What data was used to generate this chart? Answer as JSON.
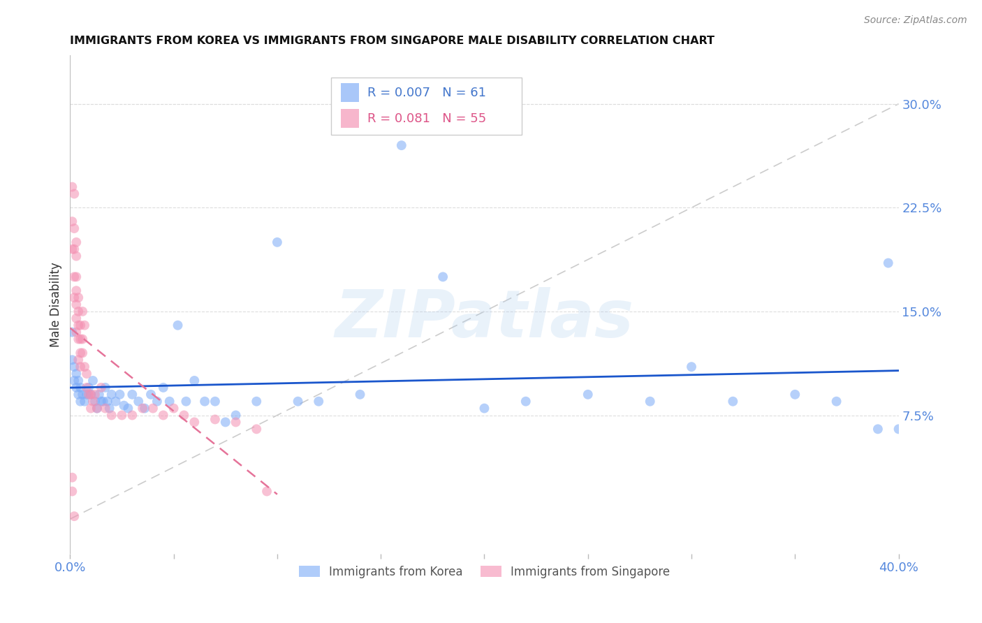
{
  "title": "IMMIGRANTS FROM KOREA VS IMMIGRANTS FROM SINGAPORE MALE DISABILITY CORRELATION CHART",
  "source": "Source: ZipAtlas.com",
  "ylabel": "Male Disability",
  "ytick_labels": [
    "7.5%",
    "15.0%",
    "22.5%",
    "30.0%"
  ],
  "ytick_values": [
    0.075,
    0.15,
    0.225,
    0.3
  ],
  "xlim": [
    0.0,
    0.4
  ],
  "ylim": [
    -0.025,
    0.335
  ],
  "legend_korea_R": "0.007",
  "legend_korea_N": "61",
  "legend_singapore_R": "0.081",
  "legend_singapore_N": "55",
  "korea_color": "#7BAAF7",
  "singapore_color": "#F48FB1",
  "korea_line_color": "#1A56CC",
  "singapore_line_color": "#E57399",
  "diagonal_color": "#CCCCCC",
  "watermark": "ZIPatlas",
  "korea_x": [
    0.001,
    0.001,
    0.002,
    0.002,
    0.003,
    0.003,
    0.004,
    0.004,
    0.005,
    0.005,
    0.006,
    0.007,
    0.008,
    0.009,
    0.01,
    0.011,
    0.012,
    0.013,
    0.014,
    0.015,
    0.016,
    0.017,
    0.018,
    0.019,
    0.02,
    0.022,
    0.024,
    0.026,
    0.028,
    0.03,
    0.033,
    0.036,
    0.039,
    0.042,
    0.045,
    0.048,
    0.052,
    0.056,
    0.06,
    0.065,
    0.07,
    0.075,
    0.08,
    0.09,
    0.1,
    0.11,
    0.12,
    0.14,
    0.16,
    0.18,
    0.2,
    0.22,
    0.25,
    0.28,
    0.3,
    0.32,
    0.35,
    0.37,
    0.39,
    0.395,
    0.4
  ],
  "korea_y": [
    0.135,
    0.115,
    0.11,
    0.1,
    0.105,
    0.095,
    0.1,
    0.09,
    0.095,
    0.085,
    0.09,
    0.085,
    0.09,
    0.095,
    0.09,
    0.1,
    0.085,
    0.08,
    0.09,
    0.085,
    0.085,
    0.095,
    0.085,
    0.08,
    0.09,
    0.085,
    0.09,
    0.082,
    0.08,
    0.09,
    0.085,
    0.08,
    0.09,
    0.085,
    0.095,
    0.085,
    0.14,
    0.085,
    0.1,
    0.085,
    0.085,
    0.07,
    0.075,
    0.085,
    0.2,
    0.085,
    0.085,
    0.09,
    0.27,
    0.175,
    0.08,
    0.085,
    0.09,
    0.085,
    0.11,
    0.085,
    0.09,
    0.085,
    0.065,
    0.185,
    0.065
  ],
  "singapore_x": [
    0.001,
    0.001,
    0.001,
    0.001,
    0.002,
    0.002,
    0.002,
    0.002,
    0.002,
    0.003,
    0.003,
    0.003,
    0.003,
    0.003,
    0.003,
    0.003,
    0.004,
    0.004,
    0.004,
    0.004,
    0.004,
    0.005,
    0.005,
    0.005,
    0.005,
    0.006,
    0.006,
    0.006,
    0.007,
    0.007,
    0.008,
    0.008,
    0.009,
    0.01,
    0.011,
    0.012,
    0.013,
    0.015,
    0.017,
    0.02,
    0.025,
    0.03,
    0.035,
    0.04,
    0.045,
    0.05,
    0.055,
    0.06,
    0.07,
    0.08,
    0.09,
    0.095,
    0.01,
    0.001,
    0.002
  ],
  "singapore_y": [
    0.24,
    0.215,
    0.195,
    0.02,
    0.235,
    0.21,
    0.195,
    0.175,
    0.16,
    0.2,
    0.19,
    0.175,
    0.165,
    0.155,
    0.145,
    0.135,
    0.16,
    0.15,
    0.14,
    0.13,
    0.115,
    0.14,
    0.13,
    0.12,
    0.11,
    0.15,
    0.13,
    0.12,
    0.14,
    0.11,
    0.105,
    0.095,
    0.09,
    0.09,
    0.085,
    0.09,
    0.08,
    0.095,
    0.08,
    0.075,
    0.075,
    0.075,
    0.08,
    0.08,
    0.075,
    0.08,
    0.075,
    0.07,
    0.072,
    0.07,
    0.065,
    0.02,
    0.08,
    0.03,
    0.002
  ]
}
